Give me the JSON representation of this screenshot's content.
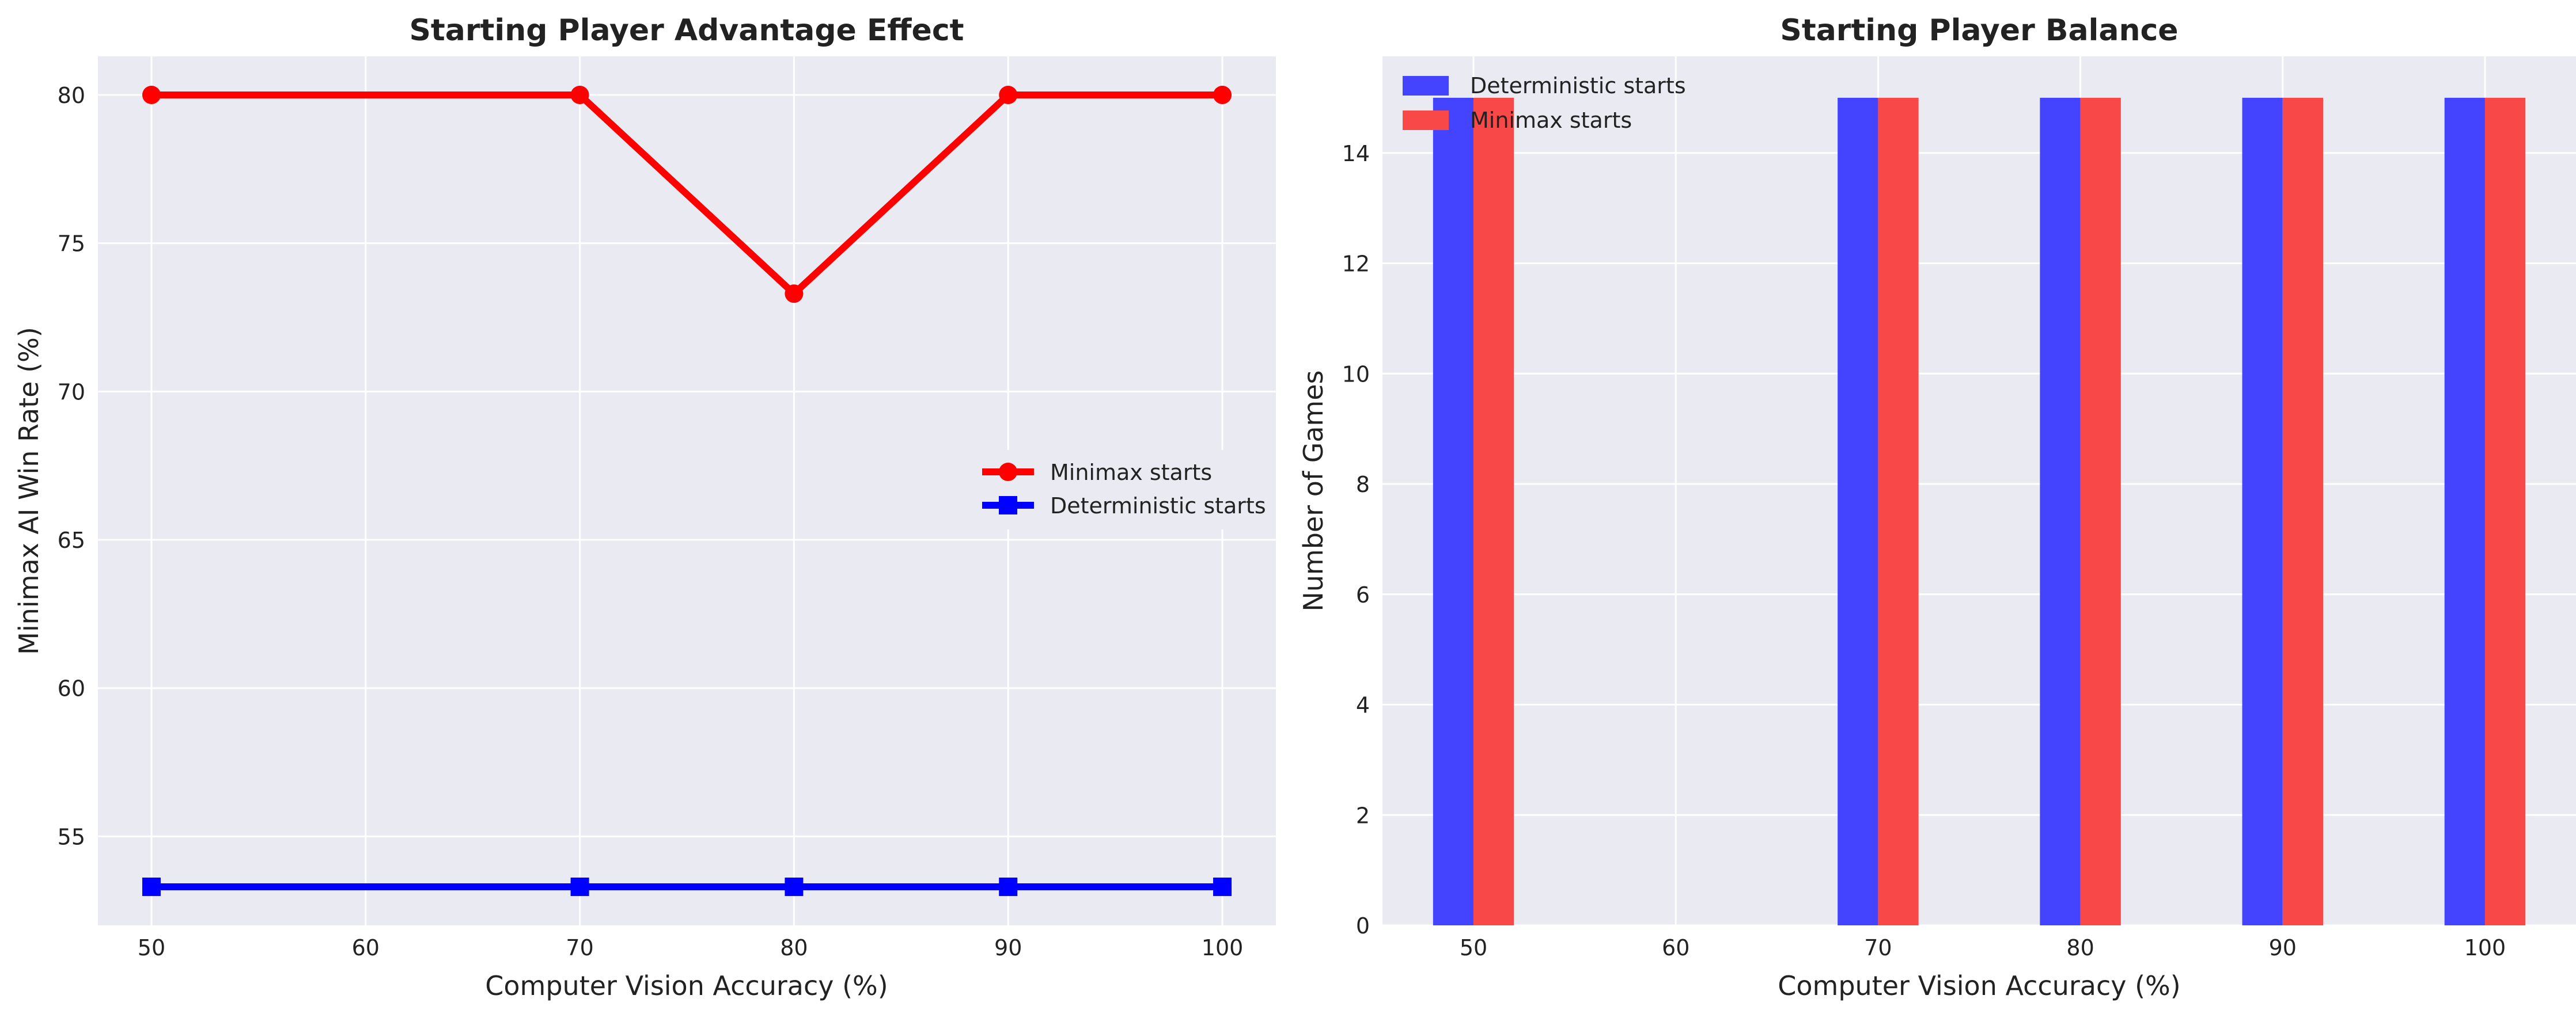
{
  "chart_data": [
    {
      "type": "line",
      "title": "Starting Player Advantage Effect",
      "xlabel": "Computer Vision Accuracy (%)",
      "ylabel": "Minimax AI Win Rate (%)",
      "xlim": [
        47.5,
        102.5
      ],
      "ylim": [
        52.0,
        81.3
      ],
      "xticks": [
        50,
        60,
        70,
        80,
        90,
        100
      ],
      "yticks": [
        55,
        60,
        65,
        70,
        75,
        80
      ],
      "grid": true,
      "legend_position": "center-right",
      "x": [
        50,
        70,
        80,
        90,
        100
      ],
      "series": [
        {
          "name": "Minimax starts",
          "values": [
            80.0,
            80.0,
            73.3,
            80.0,
            80.0
          ],
          "color": "#ff0000",
          "marker": "circle"
        },
        {
          "name": "Deterministic starts",
          "values": [
            53.3,
            53.3,
            53.3,
            53.3,
            53.3
          ],
          "color": "#0000ff",
          "marker": "square"
        }
      ]
    },
    {
      "type": "bar",
      "title": "Starting Player Balance",
      "xlabel": "Computer Vision Accuracy (%)",
      "ylabel": "Number of Games",
      "xlim": [
        45.5,
        104.5
      ],
      "ylim": [
        0,
        15.75
      ],
      "xticks": [
        50,
        60,
        70,
        80,
        90,
        100
      ],
      "yticks": [
        0,
        2,
        4,
        6,
        8,
        10,
        12,
        14
      ],
      "grid": true,
      "legend_position": "top-left",
      "x": [
        50,
        70,
        80,
        90,
        100
      ],
      "series": [
        {
          "name": "Deterministic starts",
          "values": [
            15,
            15,
            15,
            15,
            15
          ],
          "color": "#4444ff"
        },
        {
          "name": "Minimax starts",
          "values": [
            15,
            15,
            15,
            15,
            15
          ],
          "color": "#f84848"
        }
      ]
    }
  ]
}
